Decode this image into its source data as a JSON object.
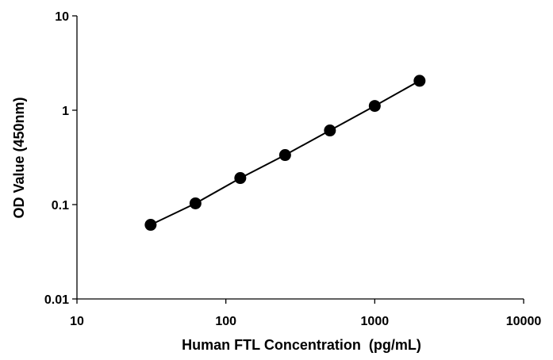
{
  "chart_data": {
    "type": "scatter",
    "title": "",
    "xlabel": "Human FTL Concentration  (pg/mL)",
    "ylabel": "OD Value (450nm)",
    "x_scale": "log",
    "y_scale": "log",
    "xlim": [
      10,
      10000
    ],
    "ylim": [
      0.01,
      10
    ],
    "x_ticks": [
      {
        "value": 10,
        "label": "10"
      },
      {
        "value": 100,
        "label": "100"
      },
      {
        "value": 1000,
        "label": "1000"
      },
      {
        "value": 10000,
        "label": "10000"
      }
    ],
    "y_ticks": [
      {
        "value": 0.01,
        "label": "0.01"
      },
      {
        "value": 0.1,
        "label": "0.1"
      },
      {
        "value": 1,
        "label": "1"
      },
      {
        "value": 10,
        "label": "10"
      }
    ],
    "grid": false,
    "legend": "none",
    "series": [
      {
        "color": "#000000",
        "connected": true,
        "points": [
          {
            "x": 31.25,
            "y": 0.061
          },
          {
            "x": 62.5,
            "y": 0.103
          },
          {
            "x": 125,
            "y": 0.191
          },
          {
            "x": 250,
            "y": 0.335
          },
          {
            "x": 500,
            "y": 0.61
          },
          {
            "x": 1000,
            "y": 1.11
          },
          {
            "x": 2000,
            "y": 2.05
          }
        ]
      }
    ]
  }
}
